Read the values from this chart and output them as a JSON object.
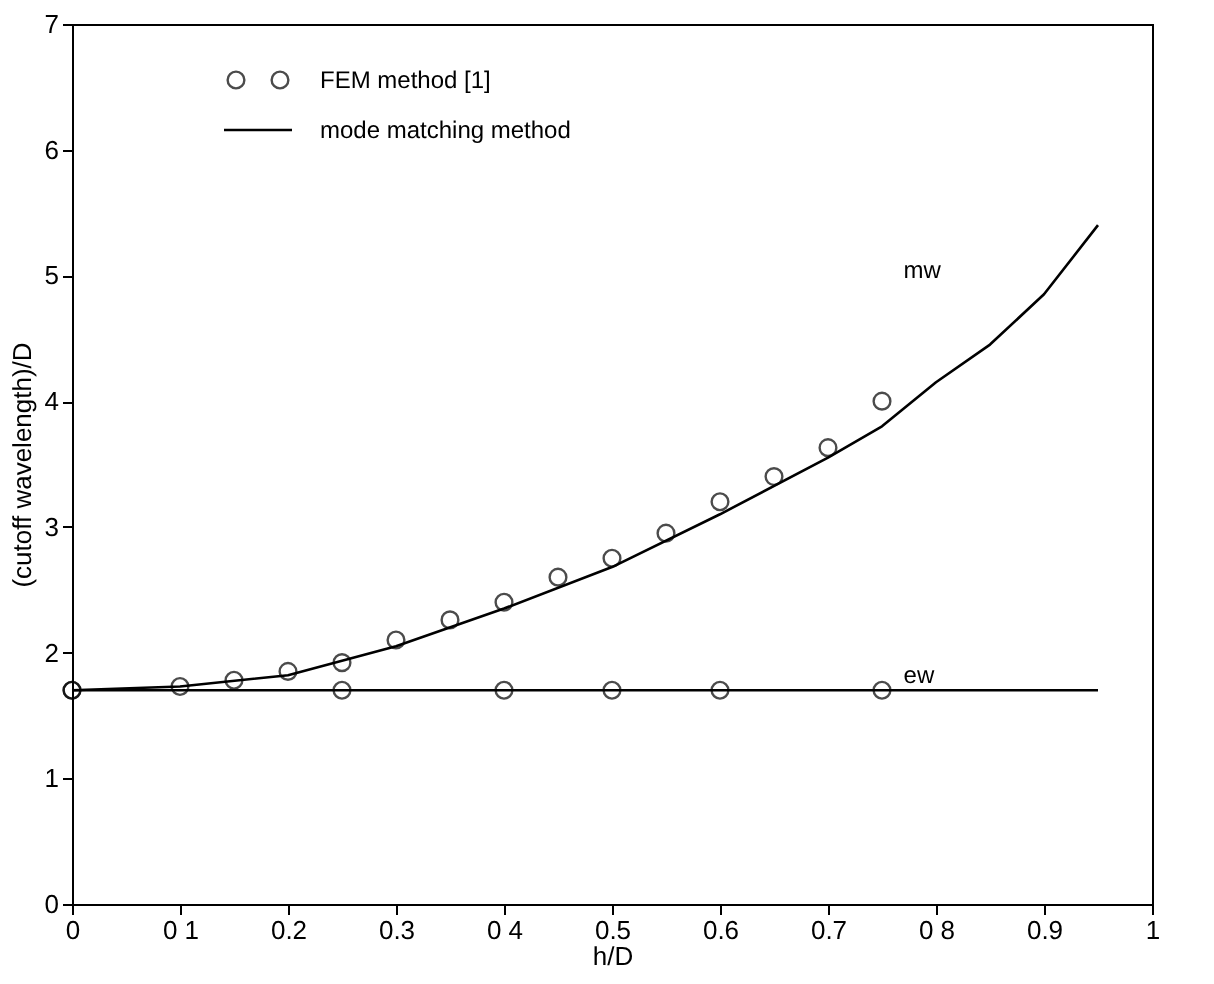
{
  "chart_data": {
    "type": "line",
    "xlabel": "h/D",
    "ylabel": "(cutoff wavelength)/D",
    "xlim": [
      0,
      1
    ],
    "ylim": [
      0,
      7
    ],
    "xticks": [
      0,
      {
        "value": 0.1,
        "label": "0 1"
      },
      0.2,
      0.3,
      {
        "value": 0.4,
        "label": "0 4"
      },
      0.5,
      0.6,
      0.7,
      {
        "value": 0.8,
        "label": "0 8"
      },
      0.9,
      1
    ],
    "yticks": [
      0,
      1,
      2,
      3,
      4,
      5,
      6,
      7
    ],
    "grid": false,
    "legend": "top left",
    "series": [
      {
        "name": "FEM method [1]",
        "type": "scatter",
        "marker": "circle",
        "color": "#000000",
        "x": [
          0,
          0.1,
          0.15,
          0.2,
          0.25,
          0.3,
          0.35,
          0.4,
          0.45,
          0.5,
          0.55,
          0.6,
          0.65,
          0.7,
          0.75
        ],
        "values": [
          1.7,
          1.73,
          1.78,
          1.85,
          1.92,
          2.1,
          2.26,
          2.4,
          2.6,
          2.75,
          2.95,
          3.2,
          3.4,
          3.63,
          4.0
        ]
      },
      {
        "type": "scatter",
        "marker": "circle",
        "color": "#000000",
        "x": [
          0,
          0.25,
          0.4,
          0.5,
          0.6,
          0.75
        ],
        "values": [
          1.7,
          1.7,
          1.7,
          1.7,
          1.7,
          1.7
        ]
      },
      {
        "name": "mode matching method",
        "type": "line",
        "line_style": "solid",
        "color": "#000000",
        "x": [
          0,
          0.1,
          0.2,
          0.3,
          0.4,
          0.5,
          0.6,
          0.7,
          0.75,
          0.8,
          0.85,
          0.9,
          0.95
        ],
        "values": [
          1.7,
          1.73,
          1.82,
          2.05,
          2.35,
          2.68,
          3.1,
          3.55,
          3.8,
          4.15,
          4.45,
          4.85,
          5.4
        ]
      },
      {
        "type": "line",
        "line_style": "solid",
        "color": "#000000",
        "x": [
          0,
          0.95
        ],
        "values": [
          1.7,
          1.7
        ]
      }
    ],
    "annotations": [
      "mw",
      "ew"
    ]
  }
}
